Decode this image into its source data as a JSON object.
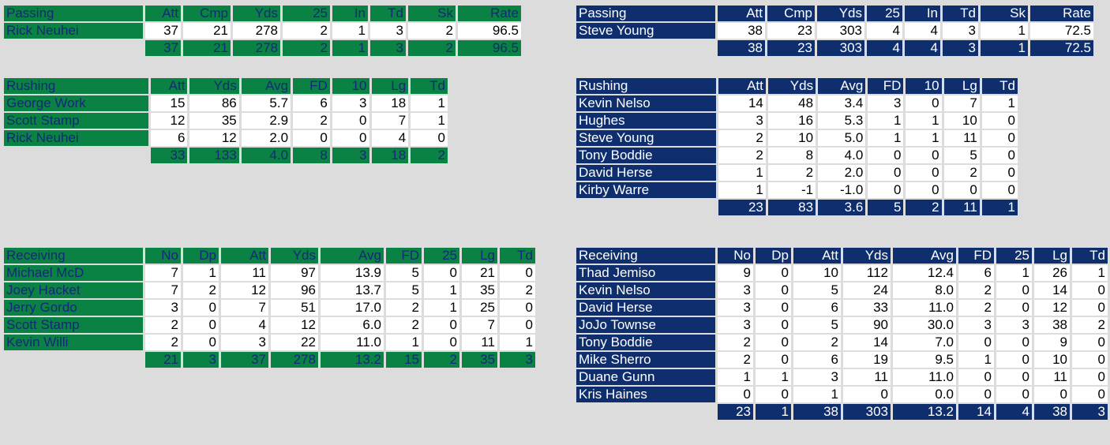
{
  "left": {
    "passing": {
      "headers": [
        "Passing",
        "Att",
        "Cmp",
        "Yds",
        "25",
        "In",
        "Td",
        "Sk",
        "Rate"
      ],
      "rows": [
        [
          "Rick Neuhei",
          "37",
          "21",
          "278",
          "2",
          "1",
          "3",
          "2",
          "96.5"
        ]
      ],
      "totals": [
        "",
        "37",
        "21",
        "278",
        "2",
        "1",
        "3",
        "2",
        "96.5"
      ]
    },
    "rushing": {
      "headers": [
        "Rushing",
        "Att",
        "Yds",
        "Avg",
        "FD",
        "10",
        "Lg",
        "Td"
      ],
      "rows": [
        [
          "George Work",
          "15",
          "86",
          "5.7",
          "6",
          "3",
          "18",
          "1"
        ],
        [
          "Scott Stamp",
          "12",
          "35",
          "2.9",
          "2",
          "0",
          "7",
          "1"
        ],
        [
          "Rick Neuhei",
          "6",
          "12",
          "2.0",
          "0",
          "0",
          "4",
          "0"
        ]
      ],
      "totals": [
        "",
        "33",
        "133",
        "4.0",
        "8",
        "3",
        "18",
        "2"
      ]
    },
    "receiving": {
      "headers": [
        "Receiving",
        "No",
        "Dp",
        "Att",
        "Yds",
        "Avg",
        "FD",
        "25",
        "Lg",
        "Td"
      ],
      "rows": [
        [
          "Michael McD",
          "7",
          "1",
          "11",
          "97",
          "13.9",
          "5",
          "0",
          "21",
          "0"
        ],
        [
          "Joey Hacket",
          "7",
          "2",
          "12",
          "96",
          "13.7",
          "5",
          "1",
          "35",
          "2"
        ],
        [
          "Jerry Gordo",
          "3",
          "0",
          "7",
          "51",
          "17.0",
          "2",
          "1",
          "25",
          "0"
        ],
        [
          "Scott Stamp",
          "2",
          "0",
          "4",
          "12",
          "6.0",
          "2",
          "0",
          "7",
          "0"
        ],
        [
          "Kevin Willi",
          "2",
          "0",
          "3",
          "22",
          "11.0",
          "1",
          "0",
          "11",
          "1"
        ]
      ],
      "totals": [
        "",
        "21",
        "3",
        "37",
        "278",
        "13.2",
        "15",
        "2",
        "35",
        "3"
      ]
    }
  },
  "right": {
    "passing": {
      "headers": [
        "Passing",
        "Att",
        "Cmp",
        "Yds",
        "25",
        "In",
        "Td",
        "Sk",
        "Rate"
      ],
      "rows": [
        [
          "Steve Young",
          "38",
          "23",
          "303",
          "4",
          "4",
          "3",
          "1",
          "72.5"
        ]
      ],
      "totals": [
        "",
        "38",
        "23",
        "303",
        "4",
        "4",
        "3",
        "1",
        "72.5"
      ]
    },
    "rushing": {
      "headers": [
        "Rushing",
        "Att",
        "Yds",
        "Avg",
        "FD",
        "10",
        "Lg",
        "Td"
      ],
      "rows": [
        [
          "Kevin Nelso",
          "14",
          "48",
          "3.4",
          "3",
          "0",
          "7",
          "1"
        ],
        [
          "Hughes",
          "3",
          "16",
          "5.3",
          "1",
          "1",
          "10",
          "0"
        ],
        [
          "Steve Young",
          "2",
          "10",
          "5.0",
          "1",
          "1",
          "11",
          "0"
        ],
        [
          "Tony Boddie",
          "2",
          "8",
          "4.0",
          "0",
          "0",
          "5",
          "0"
        ],
        [
          "David Herse",
          "1",
          "2",
          "2.0",
          "0",
          "0",
          "2",
          "0"
        ],
        [
          "Kirby Warre",
          "1",
          "-1",
          "-1.0",
          "0",
          "0",
          "0",
          "0"
        ]
      ],
      "totals": [
        "",
        "23",
        "83",
        "3.6",
        "5",
        "2",
        "11",
        "1"
      ]
    },
    "receiving": {
      "headers": [
        "Receiving",
        "No",
        "Dp",
        "Att",
        "Yds",
        "Avg",
        "FD",
        "25",
        "Lg",
        "Td"
      ],
      "rows": [
        [
          "Thad Jemiso",
          "9",
          "0",
          "10",
          "112",
          "12.4",
          "6",
          "1",
          "26",
          "1"
        ],
        [
          "Kevin Nelso",
          "3",
          "0",
          "5",
          "24",
          "8.0",
          "2",
          "0",
          "14",
          "0"
        ],
        [
          "David Herse",
          "3",
          "0",
          "6",
          "33",
          "11.0",
          "2",
          "0",
          "12",
          "0"
        ],
        [
          "JoJo Townse",
          "3",
          "0",
          "5",
          "90",
          "30.0",
          "3",
          "3",
          "38",
          "2"
        ],
        [
          "Tony Boddie",
          "2",
          "0",
          "2",
          "14",
          "7.0",
          "0",
          "0",
          "9",
          "0"
        ],
        [
          "Mike Sherro",
          "2",
          "0",
          "6",
          "19",
          "9.5",
          "1",
          "0",
          "10",
          "0"
        ],
        [
          "Duane Gunn",
          "1",
          "1",
          "3",
          "11",
          "11.0",
          "0",
          "0",
          "11",
          "0"
        ],
        [
          "Kris Haines",
          "0",
          "0",
          "1",
          "0",
          "0.0",
          "0",
          "0",
          "0",
          "0"
        ]
      ],
      "totals": [
        "",
        "23",
        "1",
        "38",
        "303",
        "13.2",
        "14",
        "4",
        "38",
        "3"
      ]
    }
  },
  "colors": {
    "green": "#0a8243",
    "blue": "#0e2e6e",
    "background": "#dcdcdc"
  }
}
